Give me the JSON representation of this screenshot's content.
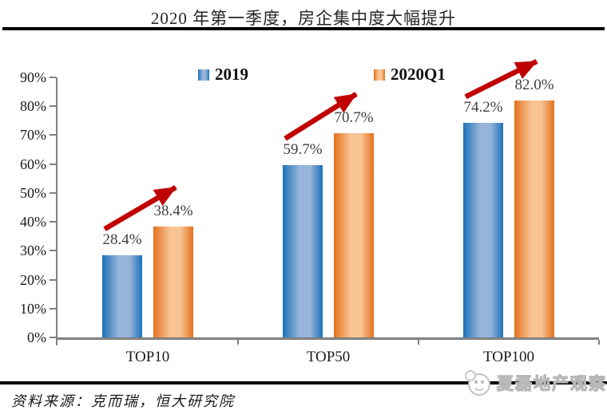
{
  "chart_data": {
    "type": "bar",
    "title": "2020 年第一季度，房企集中度大幅提升",
    "categories": [
      "TOP10",
      "TOP50",
      "TOP100"
    ],
    "series": [
      {
        "name": "2019",
        "values": [
          28.4,
          59.7,
          74.2
        ],
        "labels": [
          "28.4%",
          "59.7%",
          "74.2%"
        ],
        "color_edge": "#1E72B8",
        "color_center": "#97B5DB"
      },
      {
        "name": "2020Q1",
        "values": [
          38.4,
          70.7,
          82.0
        ],
        "labels": [
          "38.4%",
          "70.7%",
          "82.0%"
        ],
        "color_edge": "#E2711D",
        "color_center": "#F8C493"
      }
    ],
    "y_axis": {
      "min": 0,
      "max": 90,
      "step": 10,
      "tick_suffix": "%"
    },
    "x_axis": {
      "label": ""
    },
    "grid": false,
    "legend_position": "top",
    "annotations": [
      {
        "type": "arrow",
        "per_category": true,
        "color": "#C00000",
        "meaning": "increase from 2019 to 2020Q1"
      }
    ]
  },
  "footer": {
    "source": "资料来源：克而瑞，恒大研究院",
    "watermark": "夏磊地产观察"
  },
  "colors": {
    "axis": "#808080",
    "value_label": "#404040",
    "arrow": "#C00000",
    "rule": "#000000",
    "background": "#FFFFFF"
  },
  "icons": {
    "watermark_logo": "panda-face-logo-icon"
  }
}
